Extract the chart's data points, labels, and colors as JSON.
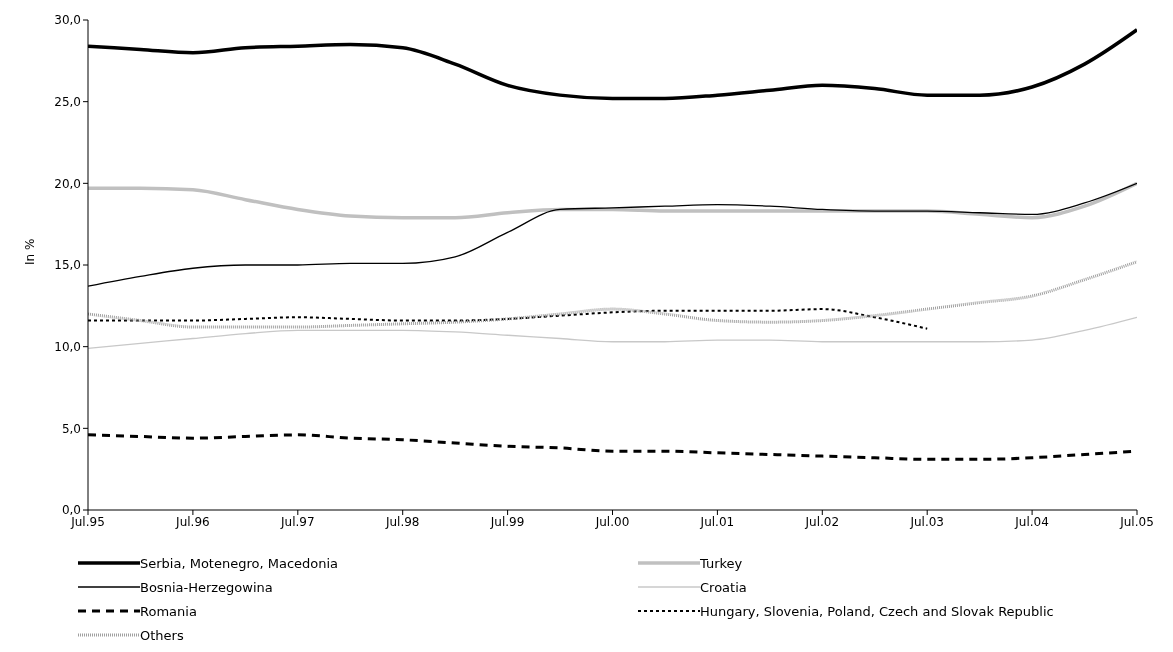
{
  "chart_data": {
    "type": "line",
    "ylabel": "In %",
    "categories": [
      "Jul.95",
      null,
      "Jul.96",
      null,
      "Jul.97",
      null,
      "Jul.98",
      null,
      "Jul.99",
      null,
      "Jul.00",
      null,
      "Jul.01",
      null,
      "Jul.02",
      null,
      "Jul.03",
      null,
      "Jul.04",
      null,
      "Jul.05"
    ],
    "ylim": [
      0,
      30
    ],
    "yticks": [
      {
        "value": 0,
        "label": "0,0"
      },
      {
        "value": 5,
        "label": "5,0"
      },
      {
        "value": 10,
        "label": "10,0"
      },
      {
        "value": 15,
        "label": "15,0"
      },
      {
        "value": 20,
        "label": "20,0"
      },
      {
        "value": 25,
        "label": "25,0"
      },
      {
        "value": 30,
        "label": "30,0"
      }
    ],
    "grid": false,
    "legend": "bottom",
    "marker": "none",
    "series": [
      {
        "name": "Serbia, Motenegro, Macedonia",
        "color": "#000000",
        "line_style": "solid",
        "values": [
          28.4,
          28.2,
          28.0,
          28.3,
          28.4,
          28.5,
          28.3,
          27.3,
          26.0,
          25.4,
          25.2,
          25.2,
          25.4,
          25.7,
          26.0,
          25.8,
          25.4,
          25.4,
          25.9,
          27.3,
          29.4
        ]
      },
      {
        "name": "Turkey",
        "color": "#c0c0c0",
        "line_style": "solid",
        "values": [
          19.7,
          19.7,
          19.6,
          19.0,
          18.4,
          18.0,
          17.9,
          17.9,
          18.2,
          18.4,
          18.4,
          18.3,
          18.3,
          18.3,
          18.3,
          18.3,
          18.3,
          18.1,
          17.9,
          18.6,
          20.0
        ]
      },
      {
        "name": "Bosnia-Herzegowina",
        "color": "#000000",
        "line_style": "solid",
        "values": [
          13.7,
          14.3,
          14.8,
          15.0,
          15.0,
          15.1,
          15.1,
          15.5,
          17.0,
          18.4,
          18.5,
          18.6,
          18.7,
          18.6,
          18.4,
          18.3,
          18.3,
          18.2,
          18.1,
          18.8,
          20.0
        ]
      },
      {
        "name": "Croatia",
        "color": "#c8c8c8",
        "line_style": "solid",
        "values": [
          9.9,
          10.2,
          10.5,
          10.8,
          11.0,
          11.0,
          11.0,
          10.9,
          10.7,
          10.5,
          10.3,
          10.3,
          10.4,
          10.4,
          10.3,
          10.3,
          10.3,
          10.3,
          10.4,
          11.0,
          11.8
        ]
      },
      {
        "name": "Romania",
        "color": "#000000",
        "line_style": "dashed",
        "values": [
          4.6,
          4.5,
          4.4,
          4.5,
          4.6,
          4.4,
          4.3,
          4.1,
          3.9,
          3.8,
          3.6,
          3.6,
          3.5,
          3.4,
          3.3,
          3.2,
          3.1,
          3.1,
          3.2,
          3.4,
          3.6
        ]
      },
      {
        "name": "Hungary, Slovenia, Poland, Czech and Slovak Republic",
        "color": "#000000",
        "line_style": "dotted",
        "values": [
          11.6,
          11.6,
          11.6,
          11.7,
          11.8,
          11.7,
          11.6,
          11.6,
          11.7,
          11.9,
          12.1,
          12.2,
          12.2,
          12.2,
          12.3,
          11.8,
          11.1,
          null,
          null,
          null,
          null
        ]
      },
      {
        "name": "Others",
        "color": "#a0a0a0",
        "line_style": "dotted",
        "values": [
          12.0,
          11.6,
          11.2,
          11.2,
          11.2,
          11.3,
          11.4,
          11.5,
          11.7,
          12.0,
          12.3,
          12.0,
          11.6,
          11.5,
          11.6,
          11.9,
          12.3,
          12.7,
          13.1,
          14.1,
          15.2
        ]
      }
    ]
  }
}
